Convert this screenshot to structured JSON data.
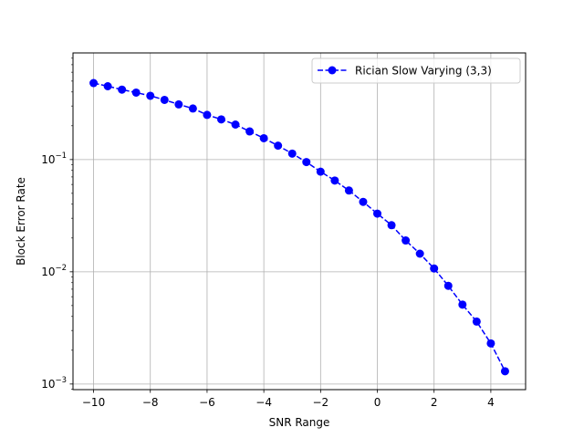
{
  "chart_data": {
    "type": "line",
    "title": "",
    "xlabel": "SNR Range",
    "ylabel": "Block Error Rate",
    "xlim": [
      -10.725,
      5.225
    ],
    "ylim_log10": [
      -3.05,
      -0.05
    ],
    "yscale": "log",
    "grid": true,
    "legend_position": "top-right",
    "x_ticks": [
      -10,
      -8,
      -6,
      -4,
      -2,
      0,
      2,
      4
    ],
    "x_tick_labels": [
      "−10",
      "−8",
      "−6",
      "−4",
      "−2",
      "0",
      "2",
      "4"
    ],
    "y_ticks": [
      0.001,
      0.01,
      0.1
    ],
    "y_tick_labels": [
      {
        "base": "10",
        "exp": "−3"
      },
      {
        "base": "10",
        "exp": "−2"
      },
      {
        "base": "10",
        "exp": "−1"
      }
    ],
    "series": [
      {
        "name": "Rician Slow Varying (3,3)",
        "color": "#0000ff",
        "line_style": "dashed",
        "marker": "circle",
        "x": [
          -10,
          -9.5,
          -9,
          -8.5,
          -8,
          -7.5,
          -7,
          -6.5,
          -6,
          -5.5,
          -5,
          -4.5,
          -4,
          -3.5,
          -3,
          -2.5,
          -2,
          -1.5,
          -1,
          -0.5,
          0,
          0.5,
          1,
          1.5,
          2,
          2.5,
          3,
          3.5,
          4,
          4.5
        ],
        "y": [
          0.48,
          0.45,
          0.42,
          0.395,
          0.37,
          0.34,
          0.31,
          0.285,
          0.25,
          0.228,
          0.205,
          0.178,
          0.155,
          0.133,
          0.113,
          0.095,
          0.078,
          0.065,
          0.053,
          0.042,
          0.033,
          0.026,
          0.019,
          0.0145,
          0.0107,
          0.0075,
          0.0051,
          0.0036,
          0.0023,
          0.0013
        ]
      }
    ]
  }
}
